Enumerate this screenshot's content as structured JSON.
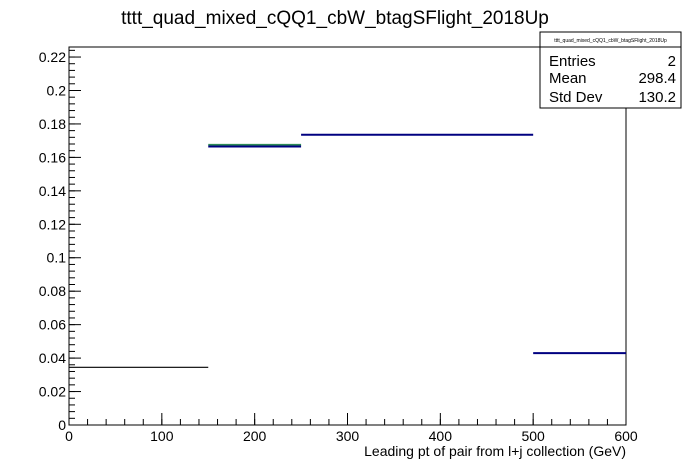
{
  "chart_data": {
    "type": "histogram",
    "title": "tttt_quad_mixed_cQQ1_cbW_btagSFlight_2018Up",
    "xlabel": "Leading pt of pair from l+j collection (GeV)",
    "ylabel": "",
    "xlim": [
      0,
      600
    ],
    "ylim": [
      0,
      0.226
    ],
    "x_ticks": [
      0,
      100,
      200,
      300,
      400,
      500,
      600
    ],
    "y_ticks": [
      0,
      0.02,
      0.04,
      0.06,
      0.08,
      0.1,
      0.12,
      0.14,
      0.16,
      0.18,
      0.2,
      0.22
    ],
    "grid": false,
    "bins": [
      {
        "x0": 0,
        "x1": 150,
        "value": 0.0345,
        "color": "#000000"
      },
      {
        "x0": 150,
        "x1": 250,
        "value": 0.1665,
        "color": "#000080",
        "overlay_color": "#2e8b57",
        "overlay_value": 0.1675
      },
      {
        "x0": 250,
        "x1": 500,
        "value": 0.1735,
        "color": "#000080"
      },
      {
        "x0": 500,
        "x1": 600,
        "value": 0.043,
        "color": "#000080"
      }
    ],
    "stats_box": {
      "title": "tttt_quad_mixed_cQQ1_cbW_btagSFlight_2018Up",
      "rows": [
        {
          "label": "Entries",
          "value": "2"
        },
        {
          "label": "Mean",
          "value": "298.4"
        },
        {
          "label": "Std Dev",
          "value": "130.2"
        }
      ]
    }
  }
}
